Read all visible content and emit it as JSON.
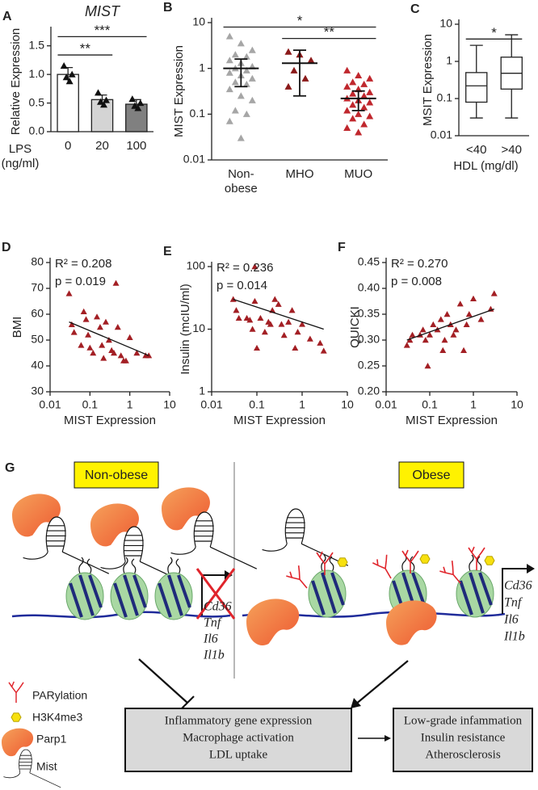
{
  "chart_data": [
    {
      "type": "bar",
      "panel": "A",
      "title": "MIST",
      "ylabel": "Relative Expression",
      "xlabel": [
        "LPS",
        "(ng/ml)"
      ],
      "categories": [
        "0",
        "20",
        "100"
      ],
      "values": [
        1.0,
        0.56,
        0.48
      ],
      "errors": [
        0.12,
        0.08,
        0.08
      ],
      "colors": [
        "#ffffff",
        "#d4d4d4",
        "#808080"
      ],
      "point_color": "#111111",
      "points": [
        [
          1.15,
          1.0,
          0.95,
          0.88
        ],
        [
          0.68,
          0.55,
          0.52,
          0.47
        ],
        [
          0.57,
          0.5,
          0.45,
          0.41
        ]
      ],
      "ylim": [
        0,
        1.75
      ],
      "yticks": [
        {
          "value": 0,
          "label": "0.0"
        },
        {
          "value": 0.5,
          "label": "0.5"
        },
        {
          "value": 1.0,
          "label": "1.0"
        },
        {
          "value": 1.5,
          "label": "1.5"
        }
      ],
      "annotations": [
        {
          "text": "**",
          "between": [
            0,
            1
          ],
          "y": 1.34
        },
        {
          "text": "***",
          "between": [
            0,
            2
          ],
          "y": 1.66
        }
      ]
    },
    {
      "type": "dot",
      "panel": "B",
      "ylabel": "MIST Expression",
      "ylog": true,
      "categories": [
        [
          "Non-",
          "obese"
        ],
        "MHO",
        "MUO"
      ],
      "colors": [
        "#a6a6a6",
        "#8b1a1a",
        "#c0272d"
      ],
      "points": [
        [
          5,
          3.5,
          2.5,
          2,
          1.8,
          1.5,
          1.3,
          1.1,
          1,
          0.9,
          0.8,
          0.7,
          0.6,
          0.5,
          0.45,
          0.35,
          0.25,
          0.2,
          0.12,
          0.1,
          0.07,
          0.03
        ],
        [
          2.3,
          2,
          1.5,
          0.9,
          0.6,
          0.4
        ],
        [
          0.9,
          0.7,
          0.6,
          0.5,
          0.45,
          0.4,
          0.35,
          0.3,
          0.28,
          0.25,
          0.22,
          0.2,
          0.18,
          0.16,
          0.14,
          0.12,
          0.1,
          0.09,
          0.08,
          0.06,
          0.05,
          0.04
        ]
      ],
      "mean": [
        1.0,
        1.3,
        0.22
      ],
      "lower": [
        0.4,
        0.25,
        0.12
      ],
      "upper": [
        1.6,
        2.5,
        0.32
      ],
      "ylim": [
        0.01,
        10
      ],
      "yticks": [
        0.01,
        0.1,
        1,
        10
      ],
      "annotations": [
        {
          "text": "*",
          "between": [
            0,
            2
          ],
          "y": 8
        },
        {
          "text": "**",
          "between": [
            1,
            2
          ],
          "y": 4.5
        }
      ]
    },
    {
      "type": "box",
      "panel": "C",
      "ylabel": "MSIT Expression",
      "xlabel": "HDL (mg/dl)",
      "ylog": true,
      "categories": [
        "<40",
        ">40"
      ],
      "min": [
        0.03,
        0.03
      ],
      "q1": [
        0.08,
        0.18
      ],
      "median": [
        0.22,
        0.48
      ],
      "q3": [
        0.5,
        1.3
      ],
      "max": [
        2.7,
        5.2
      ],
      "ylim": [
        0.01,
        10
      ],
      "yticks": [
        0.01,
        0.1,
        1,
        10
      ],
      "annotations": [
        {
          "text": "*",
          "between": [
            0,
            1
          ],
          "y": 4
        }
      ]
    },
    {
      "type": "scatter",
      "panel": "D",
      "ylabel": "BMI",
      "xlabel": "MIST Expression",
      "xlog": true,
      "color": "#a31f24",
      "x": [
        0.03,
        0.035,
        0.04,
        0.06,
        0.07,
        0.08,
        0.09,
        0.1,
        0.12,
        0.15,
        0.18,
        0.2,
        0.22,
        0.25,
        0.3,
        0.35,
        0.4,
        0.5,
        0.6,
        0.7,
        0.8,
        1.0,
        1.5,
        2.5,
        3.0,
        0.45
      ],
      "y": [
        68,
        56,
        53,
        48,
        61,
        58,
        52,
        47,
        45,
        59,
        55,
        48,
        43,
        57,
        50,
        46,
        45,
        55,
        44,
        42,
        42,
        51,
        45,
        44,
        44,
        72
      ],
      "fit": {
        "x": [
          0.03,
          3
        ],
        "y": [
          57,
          44
        ]
      },
      "stats": [
        "R² = 0.208",
        "p = 0.019"
      ],
      "xlim": [
        0.01,
        10
      ],
      "xticks": [
        0.01,
        0.1,
        1,
        10
      ],
      "ylim": [
        30,
        80
      ],
      "yticks": [
        30,
        40,
        50,
        60,
        70,
        80
      ]
    },
    {
      "type": "scatter",
      "panel": "E",
      "ylabel": "Insulin (mcIU/ml)",
      "xlabel": "MIST Expression",
      "xlog": true,
      "ylog": true,
      "color": "#a31f24",
      "x": [
        0.03,
        0.035,
        0.04,
        0.06,
        0.07,
        0.08,
        0.09,
        0.1,
        0.12,
        0.15,
        0.18,
        0.2,
        0.22,
        0.25,
        0.3,
        0.35,
        0.4,
        0.5,
        0.6,
        0.7,
        0.8,
        1.0,
        1.5,
        2.5,
        3.0,
        0.09
      ],
      "y": [
        30,
        20,
        15,
        15,
        14,
        10,
        28,
        5,
        15,
        9,
        13,
        12,
        20,
        30,
        25,
        12,
        8,
        13,
        20,
        5,
        9,
        12,
        7,
        6,
        4.5,
        100
      ],
      "fit": {
        "x": [
          0.03,
          3
        ],
        "y": [
          30,
          10
        ]
      },
      "stats": [
        "R² = 0.236",
        "p = 0.014"
      ],
      "xlim": [
        0.01,
        10
      ],
      "xticks": [
        0.01,
        0.1,
        1,
        10
      ],
      "ylim": [
        1,
        100
      ],
      "yticks": [
        1,
        10,
        100
      ]
    },
    {
      "type": "scatter",
      "panel": "F",
      "ylabel": "QUICKI",
      "xlabel": "MIST Expression",
      "xlog": true,
      "color": "#a31f24",
      "x": [
        0.03,
        0.035,
        0.04,
        0.06,
        0.07,
        0.08,
        0.09,
        0.1,
        0.12,
        0.15,
        0.18,
        0.2,
        0.22,
        0.25,
        0.3,
        0.35,
        0.4,
        0.5,
        0.6,
        0.7,
        0.8,
        1.0,
        1.5,
        2.5,
        3.0
      ],
      "y": [
        0.29,
        0.3,
        0.31,
        0.31,
        0.32,
        0.3,
        0.25,
        0.31,
        0.33,
        0.32,
        0.34,
        0.28,
        0.3,
        0.35,
        0.33,
        0.31,
        0.32,
        0.37,
        0.28,
        0.33,
        0.35,
        0.38,
        0.34,
        0.36,
        0.39
      ],
      "fit": {
        "x": [
          0.03,
          3
        ],
        "y": [
          0.3,
          0.36
        ]
      },
      "stats": [
        "R² = 0.270",
        "p = 0.008"
      ],
      "xlim": [
        0.01,
        10
      ],
      "xticks": [
        0.01,
        0.1,
        1,
        10
      ],
      "ylim": [
        0.2,
        0.45
      ],
      "yticks": [
        {
          "value": 0.2,
          "label": "0.20"
        },
        0.25,
        {
          "value": 0.3,
          "label": "0.30"
        },
        0.35,
        {
          "value": 0.4,
          "label": "0.40"
        },
        0.45
      ]
    }
  ],
  "diagram": {
    "panel": "G",
    "left_label": "Non-obese",
    "right_label": "Obese",
    "genes_left": [
      "Cd36",
      "Tnf",
      "Il6",
      "Il1b"
    ],
    "genes_right": [
      "Cd36",
      "Tnf",
      "Il6",
      "Il1b"
    ],
    "legend": [
      "PARylation",
      "H3K4me3",
      "Parp1",
      "Mist"
    ],
    "box_left": [
      "Inflammatory gene expression",
      "Macrophage activation",
      "LDL uptake"
    ],
    "box_right": [
      "Low-grade infammation",
      "Insulin resistance",
      "Atherosclerosis"
    ]
  }
}
